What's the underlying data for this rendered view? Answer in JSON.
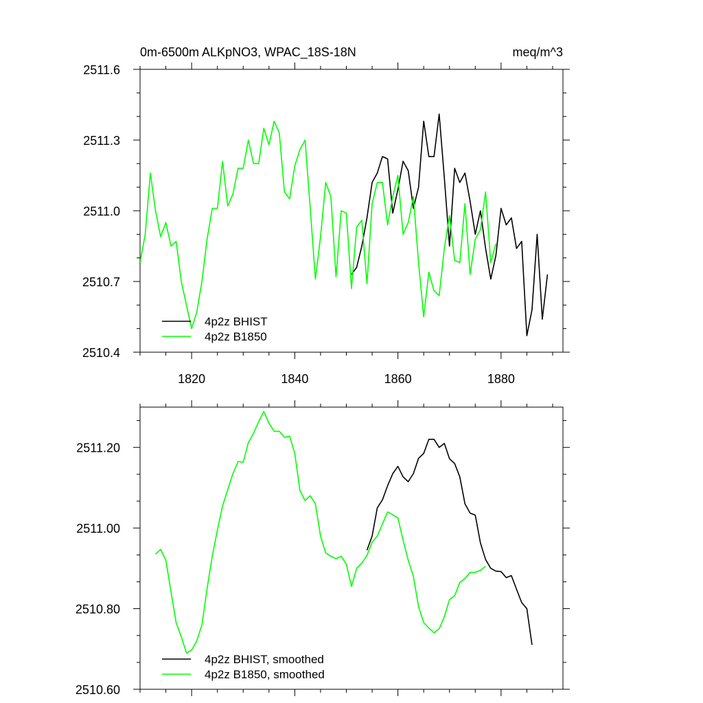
{
  "colors": {
    "bhist": "#000000",
    "b1850": "#00ff00"
  },
  "chart_data": [
    {
      "type": "line",
      "title": "0m-6500m ALKpNO3, WPAC_18S-18N",
      "units": "meq/m^3",
      "xlim": [
        1810,
        1892
      ],
      "ylim": [
        2510.4,
        2511.6
      ],
      "x_ticks": [
        1820,
        1840,
        1860,
        1880
      ],
      "y_ticks": [
        2510.4,
        2510.7,
        2511.0,
        2511.3,
        2511.6
      ],
      "x_tick_labels": [
        "1820",
        "1840",
        "1860",
        "1880"
      ],
      "y_tick_labels": [
        "2510.4",
        "2510.7",
        "2511.0",
        "2511.3",
        "2511.6"
      ],
      "legend_position": "bottom-left",
      "series": [
        {
          "name": "4p2z BHIST",
          "color": "#000000",
          "x": [
            1851,
            1852,
            1853,
            1854,
            1855,
            1856,
            1857,
            1858,
            1859,
            1860,
            1861,
            1862,
            1863,
            1864,
            1865,
            1866,
            1867,
            1868,
            1869,
            1870,
            1871,
            1872,
            1873,
            1874,
            1875,
            1876,
            1877,
            1878,
            1879,
            1880,
            1881,
            1882,
            1883,
            1884,
            1885,
            1886,
            1887,
            1888,
            1889
          ],
          "y": [
            2510.73,
            2510.76,
            2510.85,
            2510.97,
            2511.12,
            2511.16,
            2511.23,
            2511.22,
            2510.99,
            2511.09,
            2511.21,
            2511.17,
            2511.01,
            2511.1,
            2511.38,
            2511.23,
            2511.23,
            2511.41,
            2511.14,
            2510.85,
            2511.18,
            2511.12,
            2511.16,
            2511.04,
            2510.9,
            2511.0,
            2510.84,
            2510.71,
            2510.81,
            2511.01,
            2510.94,
            2510.97,
            2510.84,
            2510.87,
            2510.47,
            2510.58,
            2510.9,
            2510.54,
            2510.73
          ]
        },
        {
          "name": "4p2z B1850",
          "color": "#00ff00",
          "x": [
            1810,
            1811,
            1812,
            1813,
            1814,
            1815,
            1816,
            1817,
            1818,
            1819,
            1820,
            1821,
            1822,
            1823,
            1824,
            1825,
            1826,
            1827,
            1828,
            1829,
            1830,
            1831,
            1832,
            1833,
            1834,
            1835,
            1836,
            1837,
            1838,
            1839,
            1840,
            1841,
            1842,
            1843,
            1844,
            1845,
            1846,
            1847,
            1848,
            1849,
            1850,
            1851,
            1852,
            1853,
            1854,
            1855,
            1856,
            1857,
            1858,
            1859,
            1860,
            1861,
            1862,
            1863,
            1864,
            1865,
            1866,
            1867,
            1868,
            1869,
            1870,
            1871,
            1872,
            1873,
            1874,
            1875,
            1876,
            1877,
            1878,
            1879
          ],
          "y": [
            2510.78,
            2510.9,
            2511.16,
            2511.0,
            2510.89,
            2510.95,
            2510.85,
            2510.87,
            2510.7,
            2510.6,
            2510.5,
            2510.57,
            2510.7,
            2510.88,
            2511.01,
            2511.01,
            2511.21,
            2511.02,
            2511.07,
            2511.18,
            2511.18,
            2511.3,
            2511.2,
            2511.2,
            2511.35,
            2511.28,
            2511.38,
            2511.33,
            2511.08,
            2511.05,
            2511.19,
            2511.26,
            2511.3,
            2511.01,
            2510.71,
            2510.89,
            2511.12,
            2511.06,
            2510.72,
            2511.0,
            2510.99,
            2510.67,
            2510.93,
            2510.96,
            2510.69,
            2511.03,
            2511.12,
            2511.12,
            2510.94,
            2511.06,
            2511.15,
            2510.9,
            2510.95,
            2511.06,
            2510.78,
            2510.55,
            2510.74,
            2510.66,
            2510.64,
            2510.84,
            2510.98,
            2510.79,
            2510.78,
            2511.03,
            2510.73,
            2510.88,
            2510.92,
            2511.08,
            2510.78,
            2510.86
          ]
        }
      ]
    },
    {
      "type": "line",
      "xlim": [
        1810,
        1892
      ],
      "ylim": [
        2510.6,
        2511.3
      ],
      "x_ticks": [
        1820,
        1840,
        1860,
        1880
      ],
      "y_ticks": [
        2510.6,
        2510.8,
        2511.0,
        2511.2
      ],
      "y_tick_labels": [
        "2510.60",
        "2510.80",
        "2511.00",
        "2511.20"
      ],
      "legend_position": "bottom-left",
      "series": [
        {
          "name": "4p2z BHIST, smoothed",
          "color": "#000000",
          "x": [
            1854,
            1855,
            1856,
            1857,
            1858,
            1859,
            1860,
            1861,
            1862,
            1863,
            1864,
            1865,
            1866,
            1867,
            1868,
            1869,
            1870,
            1871,
            1872,
            1873,
            1874,
            1875,
            1876,
            1877,
            1878,
            1879,
            1880,
            1881,
            1882,
            1883,
            1884,
            1885,
            1886
          ],
          "y": [
            2510.945,
            2510.98,
            2511.05,
            2511.07,
            2511.105,
            2511.135,
            2511.153,
            2511.127,
            2511.115,
            2511.135,
            2511.173,
            2511.185,
            2511.22,
            2511.22,
            2511.2,
            2511.21,
            2511.172,
            2511.16,
            2511.127,
            2511.06,
            2511.037,
            2511.032,
            2510.963,
            2510.922,
            2510.9,
            2510.893,
            2510.892,
            2510.877,
            2510.882,
            2510.848,
            2510.815,
            2510.8,
            2510.71
          ]
        },
        {
          "name": "4p2z B1850, smoothed",
          "color": "#00ff00",
          "x": [
            1813,
            1814,
            1815,
            1816,
            1817,
            1818,
            1819,
            1820,
            1821,
            1822,
            1823,
            1824,
            1825,
            1826,
            1827,
            1828,
            1829,
            1830,
            1831,
            1832,
            1833,
            1834,
            1835,
            1836,
            1837,
            1838,
            1839,
            1840,
            1841,
            1842,
            1843,
            1844,
            1845,
            1846,
            1847,
            1848,
            1849,
            1850,
            1851,
            1852,
            1853,
            1854,
            1855,
            1856,
            1857,
            1858,
            1859,
            1860,
            1861,
            1862,
            1863,
            1864,
            1865,
            1866,
            1867,
            1868,
            1869,
            1870,
            1871,
            1872,
            1873,
            1874,
            1875,
            1876,
            1877
          ],
          "y": [
            2510.935,
            2510.947,
            2510.92,
            2510.842,
            2510.765,
            2510.73,
            2510.69,
            2510.697,
            2510.72,
            2510.76,
            2510.85,
            2510.93,
            2510.995,
            2511.055,
            2511.095,
            2511.135,
            2511.165,
            2511.163,
            2511.212,
            2511.235,
            2511.264,
            2511.289,
            2511.26,
            2511.24,
            2511.24,
            2511.225,
            2511.228,
            2511.185,
            2511.093,
            2511.068,
            2511.08,
            2511.06,
            2510.98,
            2510.938,
            2510.93,
            2510.924,
            2510.93,
            2510.91,
            2510.855,
            2510.9,
            2510.913,
            2510.932,
            2510.965,
            2510.98,
            2511.01,
            2511.04,
            2511.033,
            2511.025,
            2510.97,
            2510.92,
            2510.88,
            2510.805,
            2510.765,
            2510.752,
            2510.74,
            2510.75,
            2510.78,
            2510.822,
            2510.832,
            2510.865,
            2510.875,
            2510.89,
            2510.89,
            2510.895,
            2510.905
          ]
        }
      ]
    }
  ]
}
